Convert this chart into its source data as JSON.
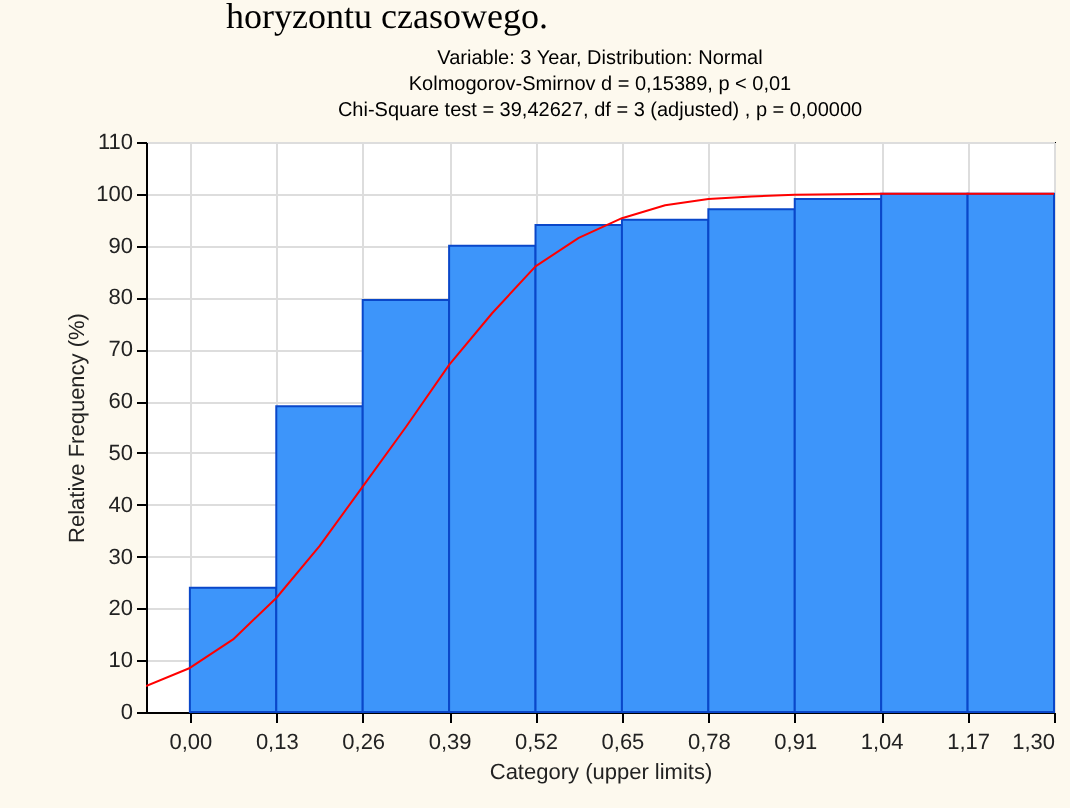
{
  "chart_data": {
    "type": "histogram",
    "title": "Variable: 3 Year, Distribution: Normal",
    "subtitle": "Kolmogorov-Smirnov d = 0,15389, p < 0,01\nChi-Square test = 39,42627, df = 3 (adjusted) , p = 0,00000",
    "xlabel": "Category (upper limits)",
    "ylabel": "Relative Frequency (%)",
    "annotations": [
      "horyzontu czasowego."
    ],
    "bins": [
      0,
      0.13,
      0.26,
      0.39,
      0.52,
      0.65,
      0.78,
      0.91,
      1.04,
      1.17,
      1.3
    ],
    "values": [
      24,
      59,
      79.5,
      90,
      94,
      95,
      97,
      99,
      100,
      100
    ],
    "color": "#3d95fa",
    "series": [
      {
        "type": "line",
        "color": "#ff0000",
        "x": [
          -0.066,
          0,
          0.065,
          0.13,
          0.195,
          0.26,
          0.325,
          0.39,
          0.455,
          0.52,
          0.585,
          0.65,
          0.715,
          0.78,
          0.845,
          0.91,
          1.04,
          1.17,
          1.3
        ],
        "values": [
          5,
          8.5,
          14,
          22,
          32,
          43.5,
          55,
          67,
          77,
          86,
          91.5,
          95.3,
          97.8,
          99,
          99.5,
          99.8,
          100,
          100,
          100
        ]
      }
    ],
    "xlim": [
      -0.066,
      1.3
    ],
    "xticks": [
      {
        "value": 0,
        "label": "0,00"
      },
      {
        "value": 0.13,
        "label": "0,13"
      },
      {
        "value": 0.26,
        "label": "0,26"
      },
      {
        "value": 0.39,
        "label": "0,39"
      },
      {
        "value": 0.52,
        "label": "0,52"
      },
      {
        "value": 0.65,
        "label": "0,65"
      },
      {
        "value": 0.78,
        "label": "0,78"
      },
      {
        "value": 0.91,
        "label": "0,91"
      },
      {
        "value": 1.04,
        "label": "1,04"
      },
      {
        "value": 1.17,
        "label": "1,17"
      },
      {
        "value": 1.3,
        "label": "1,30"
      }
    ],
    "ylim": [
      0,
      110
    ],
    "yticks": [
      0,
      10,
      20,
      30,
      40,
      50,
      60,
      70,
      80,
      90,
      100,
      110
    ],
    "grid": true
  }
}
